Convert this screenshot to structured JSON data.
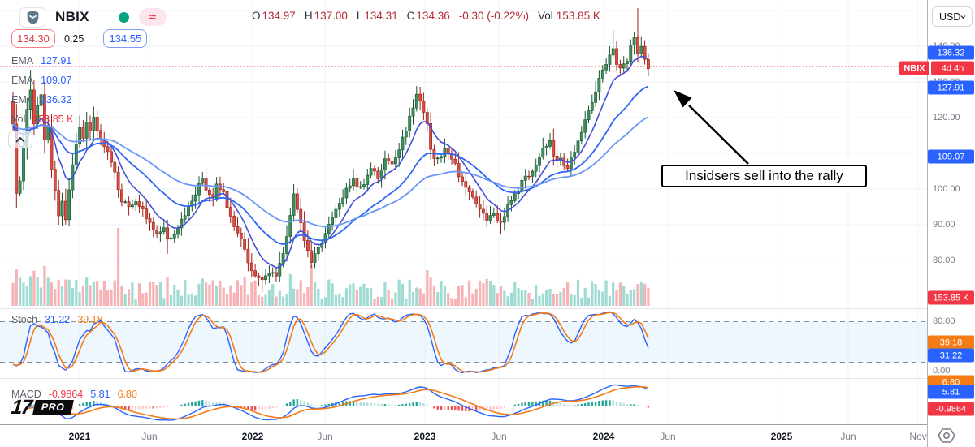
{
  "header": {
    "symbol": "NBIX",
    "ohlc": [
      {
        "label": "O",
        "value": "134.97"
      },
      {
        "label": "H",
        "value": "137.00"
      },
      {
        "label": "L",
        "value": "134.31"
      },
      {
        "label": "C",
        "value": "134.36"
      }
    ],
    "change": "-0.30 (-0.22%)",
    "vol_label": "Vol",
    "vol_value": "153.85 K"
  },
  "quote": {
    "bid": "134.30",
    "spread": "0.25",
    "ask": "134.55"
  },
  "legend": {
    "rows": [
      {
        "label": "EMA",
        "value": "127.91",
        "color": "#2962ff"
      },
      {
        "label": "EMA",
        "value": "109.07",
        "color": "#2962ff"
      },
      {
        "label": "EMA",
        "value": "136.32",
        "color": "#2962ff"
      },
      {
        "label": "Vol",
        "value": "153.85 K",
        "color": "#f23645"
      }
    ]
  },
  "stoch_legend": {
    "label": "Stoch",
    "k": "31.22",
    "d": "39.18"
  },
  "macd_legend": {
    "label": "MACD",
    "hist": "-0.9864",
    "macd": "5.81",
    "signal": "6.80"
  },
  "annotation": {
    "text": "Insidsers sell into the rally"
  },
  "right_axis": {
    "currency": "USD",
    "symbol_badge": "NBIX",
    "countdown_badge": "4d 4h",
    "price_labels": [
      "140.00",
      "130.00",
      "120.00",
      "110.00",
      "100.00",
      "90.00",
      "80.00"
    ],
    "stoch_labels": [
      "80.00",
      "0.00"
    ],
    "badges": [
      {
        "text": "136.32",
        "type": "blue"
      },
      {
        "text": "127.91",
        "type": "blue"
      },
      {
        "text": "109.07",
        "type": "blue"
      },
      {
        "text": "153.85 K",
        "type": "red"
      },
      {
        "text": "39.18",
        "type": "orange"
      },
      {
        "text": "31.22",
        "type": "blue"
      },
      {
        "text": "6.80",
        "type": "orange"
      },
      {
        "text": "5.81",
        "type": "blue"
      },
      {
        "text": "-0.9864",
        "type": "red"
      }
    ]
  },
  "time_axis": {
    "ticks": [
      {
        "label": "2021",
        "major": true
      },
      {
        "label": "Jun",
        "major": false
      },
      {
        "label": "2022",
        "major": true
      },
      {
        "label": "Jun",
        "major": false
      },
      {
        "label": "2023",
        "major": true
      },
      {
        "label": "Jun",
        "major": false
      },
      {
        "label": "2024",
        "major": true
      },
      {
        "label": "Jun",
        "major": false
      },
      {
        "label": "2025",
        "major": true
      },
      {
        "label": "Jun",
        "major": false
      },
      {
        "label": "Nov",
        "major": false
      }
    ]
  },
  "branding": {
    "logo_mark": "17",
    "pro": "PRO"
  },
  "colors": {
    "up": "#3f8f5d",
    "up_border": "#17532f",
    "down": "#d64f47",
    "down_border": "#9c1f16",
    "vol_up": "#9fdbd2",
    "vol_down": "#f6b2b4",
    "ema_fast": "#4050d8",
    "ema_mid": "#2e66f6",
    "ema_slow": "#6a96f8",
    "stoch_k": "#2962ff",
    "stoch_d": "#f57b15",
    "macd_line": "#2962ff",
    "macd_signal": "#f57b15",
    "hist_pos": "#26a69a",
    "hist_pos_weak": "#b2dfdb",
    "hist_neg": "#ef5350",
    "hist_neg_weak": "#fccbcd",
    "price_line": "#f2645a",
    "grid": "#f0f3fa",
    "band": "rgba(33,150,243,0.08)",
    "dash": "#8b8f99"
  },
  "chart_data": {
    "type": "candlestick",
    "symbol": "NBIX",
    "currency": "USD",
    "last_bar": {
      "open": 134.97,
      "high": 137.0,
      "low": 134.31,
      "close": 134.36,
      "change": -0.3,
      "change_pct": -0.22,
      "volume": "153.85K"
    },
    "price_axis": {
      "visible_labels": [
        140,
        130,
        120,
        110,
        100,
        90,
        80
      ],
      "gridlines": [
        150,
        140,
        130,
        120,
        110,
        100,
        90,
        80
      ]
    },
    "time_ticks": [
      "2021",
      "Jun",
      "2022",
      "Jun",
      "2023",
      "Jun",
      "2024",
      "Jun",
      "2025",
      "Jun",
      "Nov"
    ],
    "weeks": 182,
    "price_anchors": [
      [
        0,
        119
      ],
      [
        1,
        98
      ],
      [
        2,
        103
      ],
      [
        3,
        111
      ],
      [
        4,
        122
      ],
      [
        5,
        127
      ],
      [
        6,
        118
      ],
      [
        7,
        124
      ],
      [
        8,
        126
      ],
      [
        9,
        114
      ],
      [
        10,
        118
      ],
      [
        11,
        106
      ],
      [
        12,
        99
      ],
      [
        13,
        93
      ],
      [
        14,
        97
      ],
      [
        15,
        91
      ],
      [
        16,
        99
      ],
      [
        17,
        106
      ],
      [
        18,
        112
      ],
      [
        19,
        117
      ],
      [
        20,
        115
      ],
      [
        21,
        119
      ],
      [
        22,
        116
      ],
      [
        23,
        120
      ],
      [
        24,
        117
      ],
      [
        25,
        114
      ],
      [
        27,
        110
      ],
      [
        29,
        104
      ],
      [
        31,
        97
      ],
      [
        33,
        95
      ],
      [
        35,
        97
      ],
      [
        37,
        94
      ],
      [
        39,
        90
      ],
      [
        41,
        87
      ],
      [
        43,
        89
      ],
      [
        44,
        85.5
      ],
      [
        46,
        88
      ],
      [
        48,
        91
      ],
      [
        50,
        95
      ],
      [
        52,
        99
      ],
      [
        54,
        103
      ],
      [
        55,
        100
      ],
      [
        57,
        97
      ],
      [
        58,
        101
      ],
      [
        60,
        99
      ],
      [
        61,
        95
      ],
      [
        63,
        90
      ],
      [
        65,
        86
      ],
      [
        67,
        80
      ],
      [
        69,
        75.5
      ],
      [
        71,
        74
      ],
      [
        73,
        77
      ],
      [
        75,
        75
      ],
      [
        77,
        82
      ],
      [
        79,
        92
      ],
      [
        80,
        99
      ],
      [
        81,
        95
      ],
      [
        83,
        85
      ],
      [
        85,
        79.5
      ],
      [
        87,
        83
      ],
      [
        89,
        88
      ],
      [
        91,
        92
      ],
      [
        93,
        96
      ],
      [
        95,
        100
      ],
      [
        97,
        103
      ],
      [
        98,
        100
      ],
      [
        100,
        101
      ],
      [
        102,
        106
      ],
      [
        104,
        103
      ],
      [
        106,
        108
      ],
      [
        108,
        107
      ],
      [
        110,
        111
      ],
      [
        112,
        117
      ],
      [
        114,
        123
      ],
      [
        115,
        127
      ],
      [
        116,
        124
      ],
      [
        117,
        121
      ],
      [
        118,
        118
      ],
      [
        119,
        110.5
      ],
      [
        121,
        108
      ],
      [
        123,
        111
      ],
      [
        125,
        109
      ],
      [
        127,
        104
      ],
      [
        129,
        101
      ],
      [
        131,
        97
      ],
      [
        133,
        94
      ],
      [
        135,
        91
      ],
      [
        137,
        93
      ],
      [
        139,
        90.5
      ],
      [
        141,
        95
      ],
      [
        143,
        98
      ],
      [
        145,
        102
      ],
      [
        147,
        104
      ],
      [
        149,
        107
      ],
      [
        151,
        111
      ],
      [
        153,
        114
      ],
      [
        154,
        110
      ],
      [
        156,
        108
      ],
      [
        158,
        106
      ],
      [
        160,
        111
      ],
      [
        162,
        116
      ],
      [
        164,
        122
      ],
      [
        166,
        128
      ],
      [
        168,
        133
      ],
      [
        170,
        138
      ],
      [
        171,
        140
      ],
      [
        172,
        135
      ],
      [
        173,
        133.5
      ],
      [
        175,
        136
      ],
      [
        176,
        140
      ],
      [
        177,
        142
      ],
      [
        178,
        138
      ],
      [
        179,
        140
      ],
      [
        180,
        137
      ],
      [
        181,
        134.36
      ]
    ],
    "emas": [
      {
        "period": 9,
        "last_value": 136.32
      },
      {
        "period": 26,
        "last_value": 127.91
      },
      {
        "period": 52,
        "last_value": 109.07
      }
    ],
    "last_close_line": 134.36,
    "volume_spikes": {
      "30": 96,
      "85": 50,
      "118": 44
    },
    "stochastic": {
      "k_period": 14,
      "smooth": 3,
      "last_k": 31.22,
      "last_d": 39.18,
      "levels": [
        80,
        50,
        20
      ]
    },
    "macd": {
      "fast": 12,
      "slow": 26,
      "signal_period": 9,
      "last_hist": -0.9864,
      "last_macd": 5.81,
      "last_signal": 6.8
    }
  }
}
